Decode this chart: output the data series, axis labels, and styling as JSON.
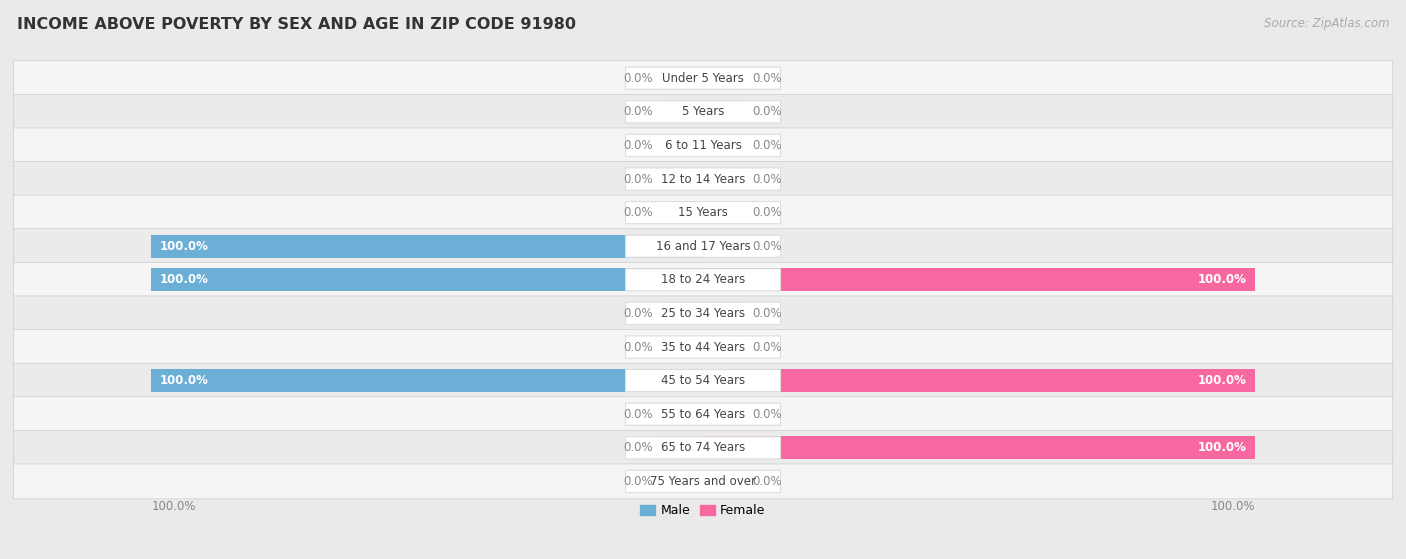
{
  "title": "INCOME ABOVE POVERTY BY SEX AND AGE IN ZIP CODE 91980",
  "source": "Source: ZipAtlas.com",
  "categories": [
    "Under 5 Years",
    "5 Years",
    "6 to 11 Years",
    "12 to 14 Years",
    "15 Years",
    "16 and 17 Years",
    "18 to 24 Years",
    "25 to 34 Years",
    "35 to 44 Years",
    "45 to 54 Years",
    "55 to 64 Years",
    "65 to 74 Years",
    "75 Years and over"
  ],
  "male_values": [
    0.0,
    0.0,
    0.0,
    0.0,
    0.0,
    100.0,
    100.0,
    0.0,
    0.0,
    100.0,
    0.0,
    0.0,
    0.0
  ],
  "female_values": [
    0.0,
    0.0,
    0.0,
    0.0,
    0.0,
    0.0,
    100.0,
    0.0,
    0.0,
    100.0,
    0.0,
    100.0,
    0.0
  ],
  "male_color": "#6baed6",
  "female_color": "#f768a1",
  "male_color_light": "#c6dbef",
  "female_color_light": "#fcc5d3",
  "bg_color": "#eaeaea",
  "row_bg_odd": "#f5f5f5",
  "row_bg_even": "#ebebeb",
  "bar_height": 0.68,
  "stub_size": 8.0,
  "xlim": 100,
  "legend_male": "Male",
  "legend_female": "Female",
  "title_fontsize": 11.5,
  "label_fontsize": 8.5,
  "category_fontsize": 8.5,
  "source_fontsize": 8.5,
  "pill_color": "#ffffff",
  "pill_border": "#dddddd",
  "value_label_color_inside": "#ffffff",
  "value_label_color_outside": "#888888"
}
